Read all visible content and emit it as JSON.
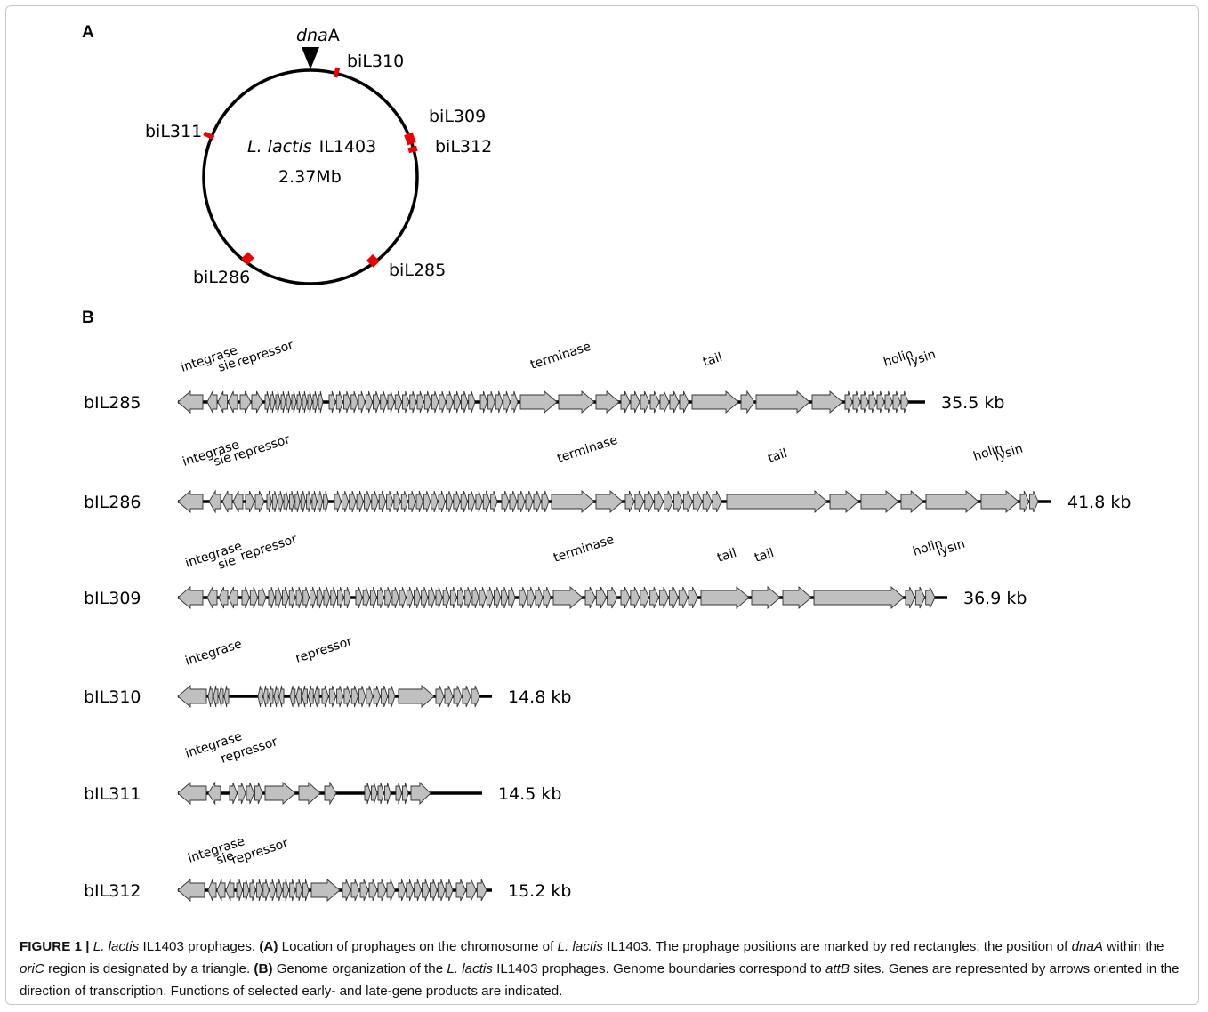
{
  "panel_a": {
    "label": "A",
    "dna_a_italic": "dna",
    "dna_a_rest": "A",
    "organism_italic": "L. lactis",
    "organism_strain": "IL1403",
    "genome_size": "2.37Mb",
    "markers": [
      "biL310",
      "biL309",
      "biL312",
      "biL311",
      "biL286",
      "biL285"
    ],
    "marker_color": "#ee0000"
  },
  "panel_b": {
    "label": "B",
    "arrow_fill": "#c0c0c0",
    "prophages": [
      {
        "name": "bIL285",
        "size": "35.5 kb",
        "annotations": [
          "integrase",
          "sie",
          "repressor",
          "terminase",
          "tail",
          "holin",
          "lysin"
        ]
      },
      {
        "name": "bIL286",
        "size": "41.8 kb",
        "annotations": [
          "integrase",
          "sie",
          "repressor",
          "terminase",
          "tail",
          "holin",
          "lysin"
        ]
      },
      {
        "name": "bIL309",
        "size": "36.9 kb",
        "annotations": [
          "integrase",
          "sie",
          "repressor",
          "terminase",
          "tail",
          "tail",
          "holin",
          "lysin"
        ]
      },
      {
        "name": "bIL310",
        "size": "14.8 kb",
        "annotations": [
          "integrase",
          "repressor"
        ]
      },
      {
        "name": "bIL311",
        "size": "14.5 kb",
        "annotations": [
          "integrase",
          "repressor"
        ]
      },
      {
        "name": "bIL312",
        "size": "15.2 kb",
        "annotations": [
          "integrase",
          "sie",
          "repressor"
        ]
      }
    ]
  },
  "caption": {
    "fig_label": "FIGURE 1 |",
    "organism": "L. lactis",
    "t1": " IL1403 prophages. ",
    "a_label": "(A)",
    "t2": " Location of prophages on the chromosome of ",
    "t3": " IL1403. The prophage positions are marked by red rectangles; the position of ",
    "dnaA": "dnaA",
    "t4": " within the ",
    "oriC": "oriC",
    "t5": " region is designated by a triangle. ",
    "b_label": "(B)",
    "t6": " Genome organization of the ",
    "t7": " IL1403 prophages. Genome boundaries correspond to ",
    "attB": "attB",
    "t8": " sites. Genes are represented by arrows oriented in the direction of transcription. Functions of selected early- and late-gene products are indicated."
  }
}
